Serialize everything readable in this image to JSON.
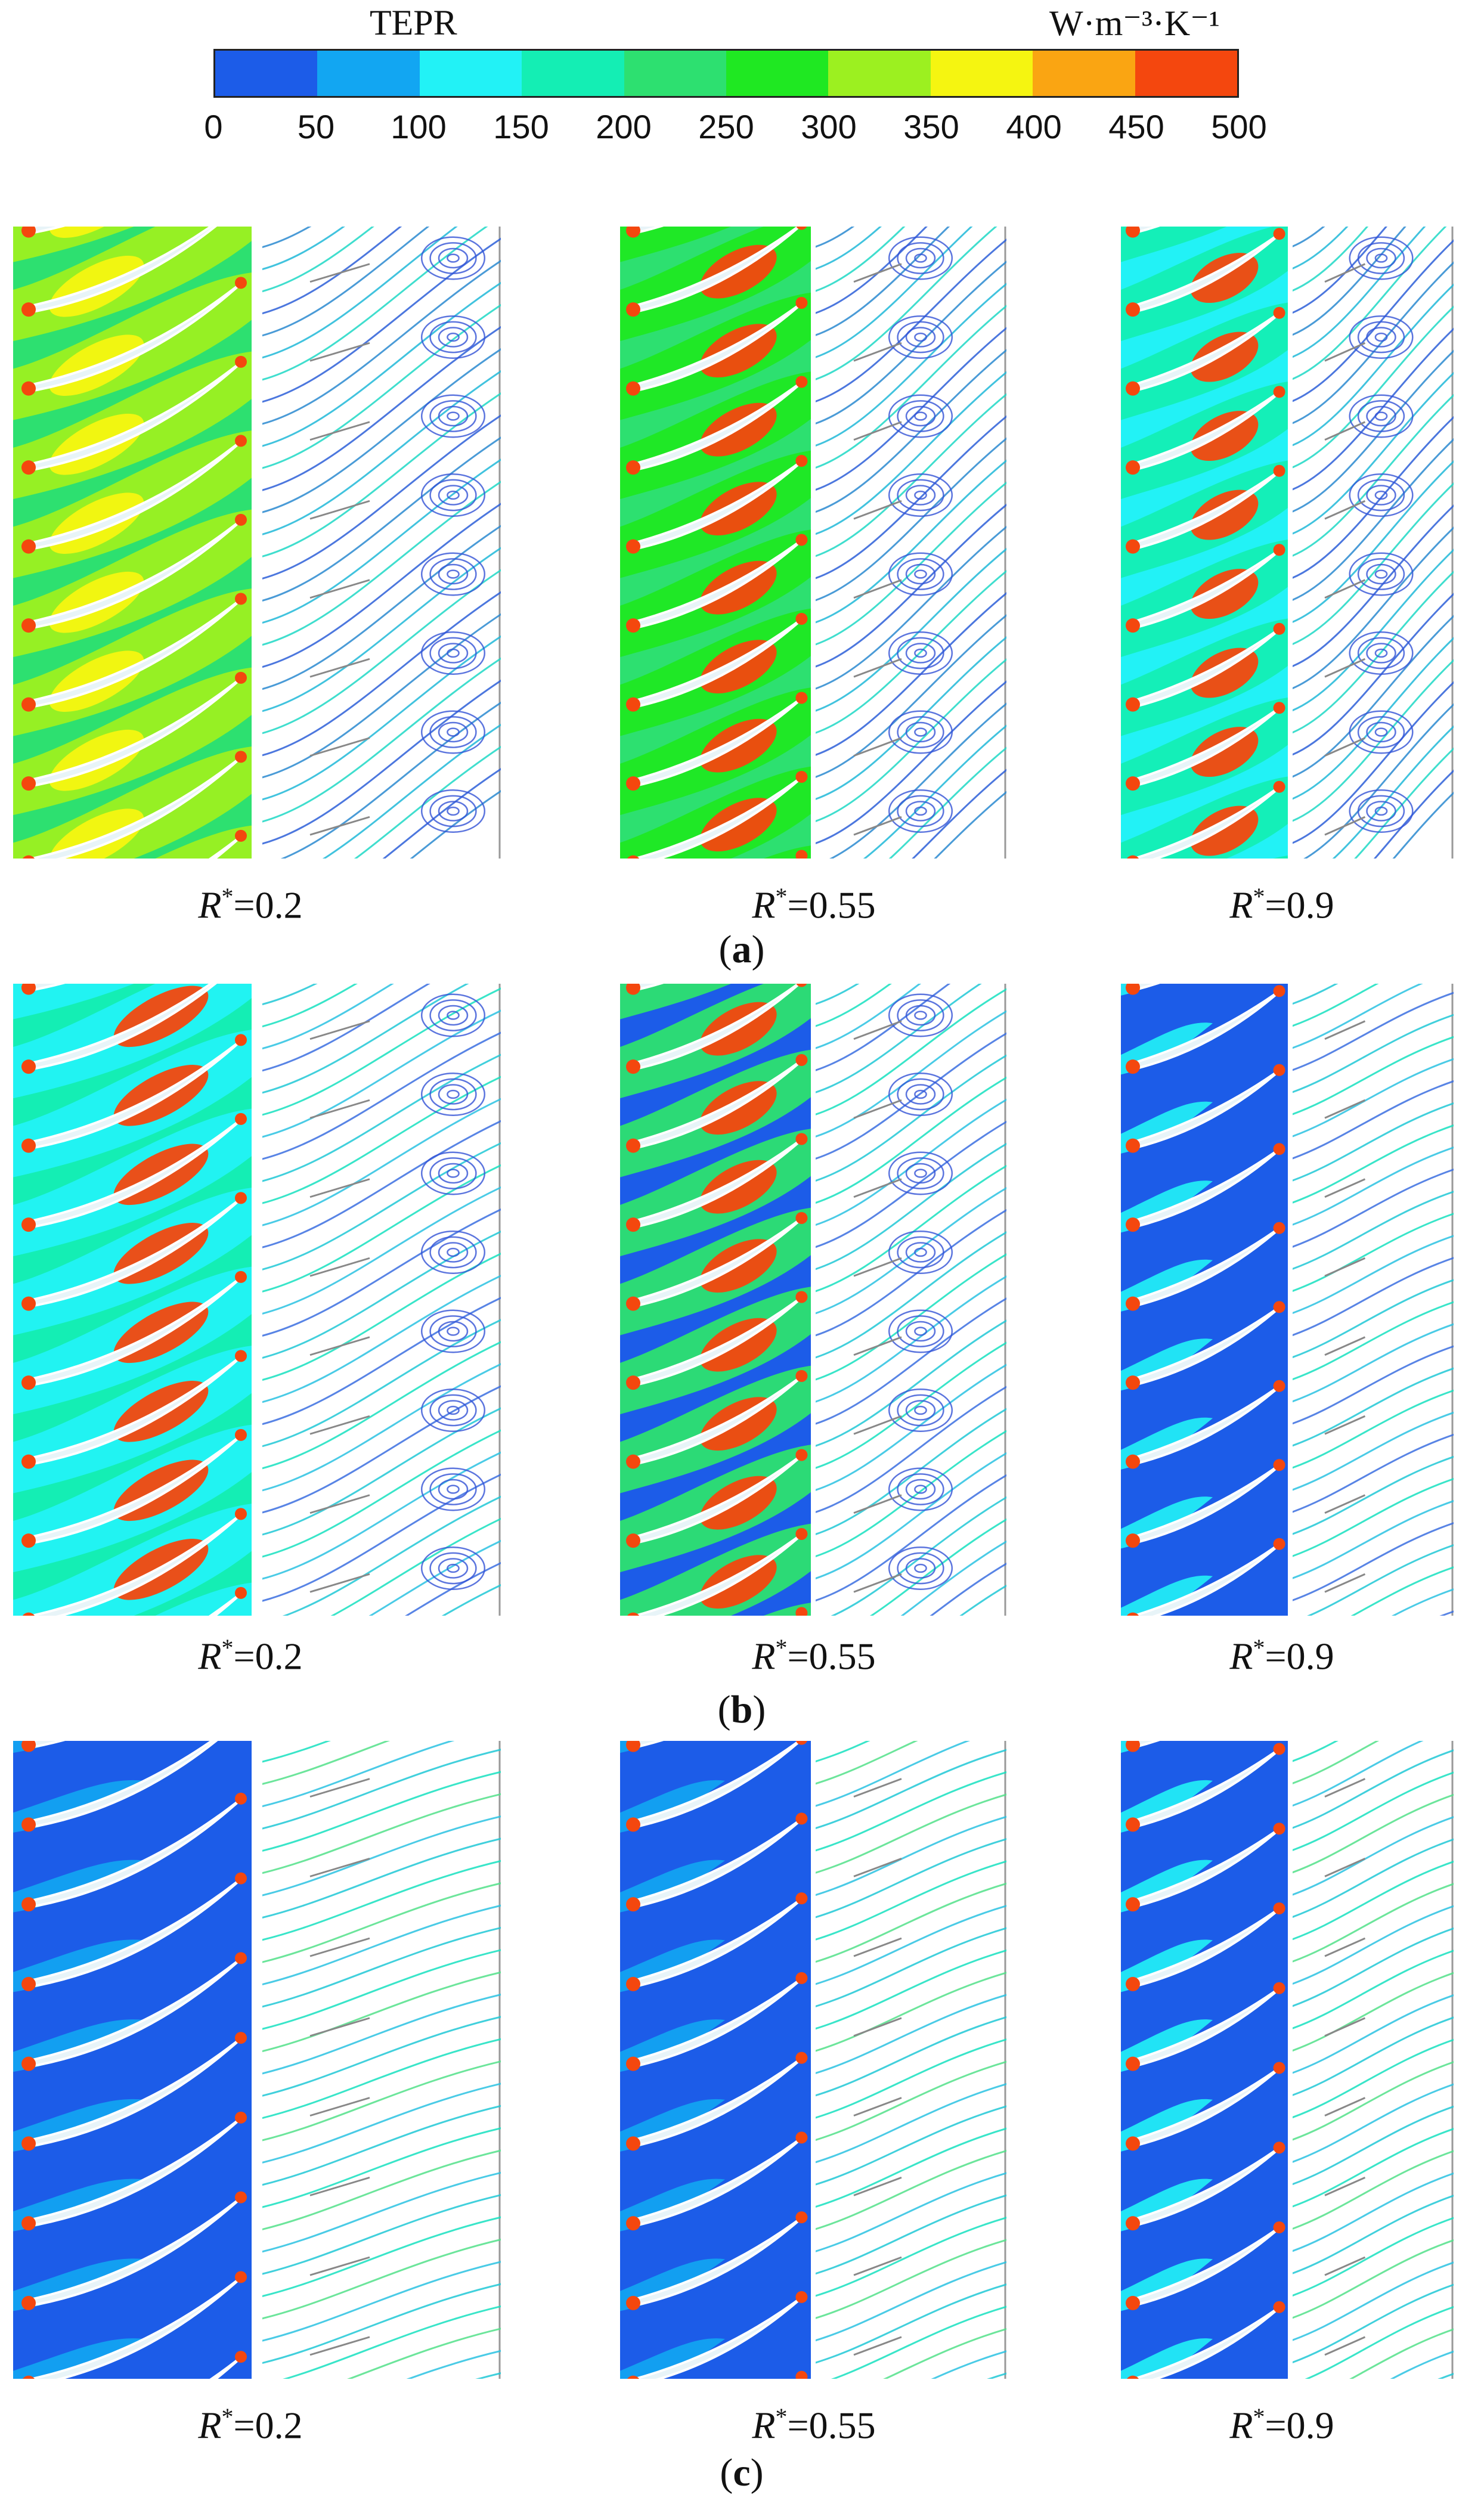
{
  "colorbar": {
    "title": "TEPR",
    "unit": "W·m⁻³·K⁻¹",
    "ticks": [
      "0",
      "50",
      "100",
      "150",
      "200",
      "250",
      "300",
      "350",
      "400",
      "450",
      "500"
    ],
    "colors": [
      "#1c5ce8",
      "#12a6f2",
      "#22f2f6",
      "#14eeb4",
      "#2de070",
      "#1fe822",
      "#9cf020",
      "#f5f511",
      "#faa512",
      "#f4470e"
    ]
  },
  "rows": [
    {
      "label": "a",
      "cases": [
        {
          "r_letter": "R",
          "r_sup": "*",
          "r_value": "=0.2"
        },
        {
          "r_letter": "R",
          "r_sup": "*",
          "r_value": "=0.55"
        },
        {
          "r_letter": "R",
          "r_sup": "*",
          "r_value": "=0.9"
        }
      ]
    },
    {
      "label": "b",
      "cases": [
        {
          "r_letter": "R",
          "r_sup": "*",
          "r_value": "=0.2"
        },
        {
          "r_letter": "R",
          "r_sup": "*",
          "r_value": "=0.55"
        },
        {
          "r_letter": "R",
          "r_sup": "*",
          "r_value": "=0.9"
        }
      ]
    },
    {
      "label": "c",
      "cases": [
        {
          "r_letter": "R",
          "r_sup": "*",
          "r_value": "=0.2"
        },
        {
          "r_letter": "R",
          "r_sup": "*",
          "r_value": "=0.55"
        },
        {
          "r_letter": "R",
          "r_sup": "*",
          "r_value": "=0.9"
        }
      ]
    }
  ]
}
